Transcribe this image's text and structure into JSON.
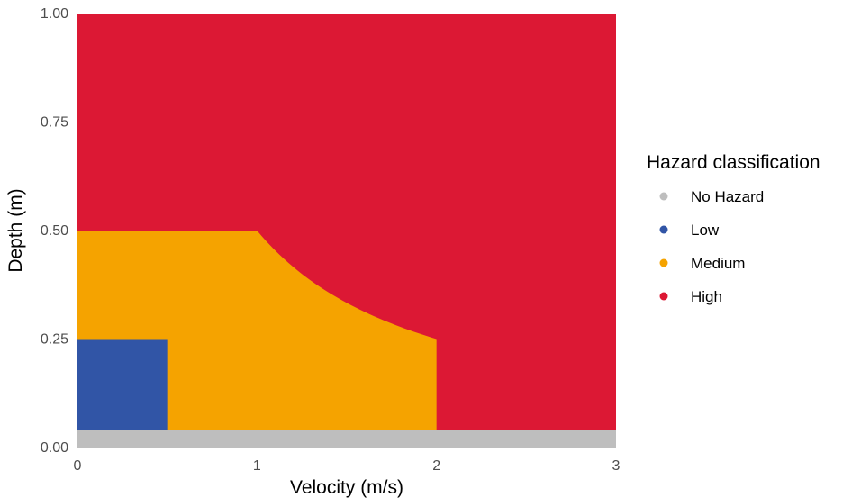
{
  "chart_data": {
    "type": "heatmap",
    "title": "",
    "xlabel": "Velocity (m/s)",
    "ylabel": "Depth (m)",
    "xlim": [
      0,
      3
    ],
    "ylim": [
      0,
      1
    ],
    "x_ticks": [
      0,
      1,
      2,
      3
    ],
    "y_ticks": [
      0,
      0.25,
      0.5,
      0.75,
      1
    ],
    "x_tick_labels": [
      "0",
      "1",
      "2",
      "3"
    ],
    "y_tick_labels": [
      "0.00",
      "0.25",
      "0.50",
      "0.75",
      "1.00"
    ],
    "grid": false,
    "legend": {
      "title": "Hazard classification",
      "position": "right",
      "entries": [
        "No Hazard",
        "Low",
        "Medium",
        "High"
      ]
    },
    "classes": [
      {
        "name": "No Hazard",
        "color": "#bebebe"
      },
      {
        "name": "Low",
        "color": "#3155a6"
      },
      {
        "name": "Medium",
        "color": "#f5a300"
      },
      {
        "name": "High",
        "color": "#dc1834"
      }
    ],
    "regions": [
      {
        "class": "High",
        "polygon": [
          [
            0,
            0
          ],
          [
            3,
            0
          ],
          [
            3,
            1
          ],
          [
            0,
            1
          ]
        ]
      },
      {
        "class": "Medium",
        "polygon": [
          [
            0,
            0
          ],
          [
            2,
            0
          ],
          [
            2,
            0.25
          ],
          [
            1.5,
            0.333
          ],
          [
            1,
            0.5
          ],
          [
            0,
            0.5
          ]
        ]
      },
      {
        "class": "Low",
        "polygon": [
          [
            0,
            0
          ],
          [
            0.5,
            0
          ],
          [
            0.5,
            0.25
          ],
          [
            0,
            0.25
          ]
        ]
      },
      {
        "class": "No Hazard",
        "polygon": [
          [
            0,
            0
          ],
          [
            3,
            0
          ],
          [
            3,
            0.04
          ],
          [
            0,
            0.04
          ]
        ]
      }
    ],
    "boundaries": [
      {
        "name": "Medium/High boundary",
        "x": [
          1,
          1.25,
          1.5,
          1.75,
          2
        ],
        "y": [
          0.5,
          0.4,
          0.333,
          0.286,
          0.25
        ]
      }
    ]
  }
}
